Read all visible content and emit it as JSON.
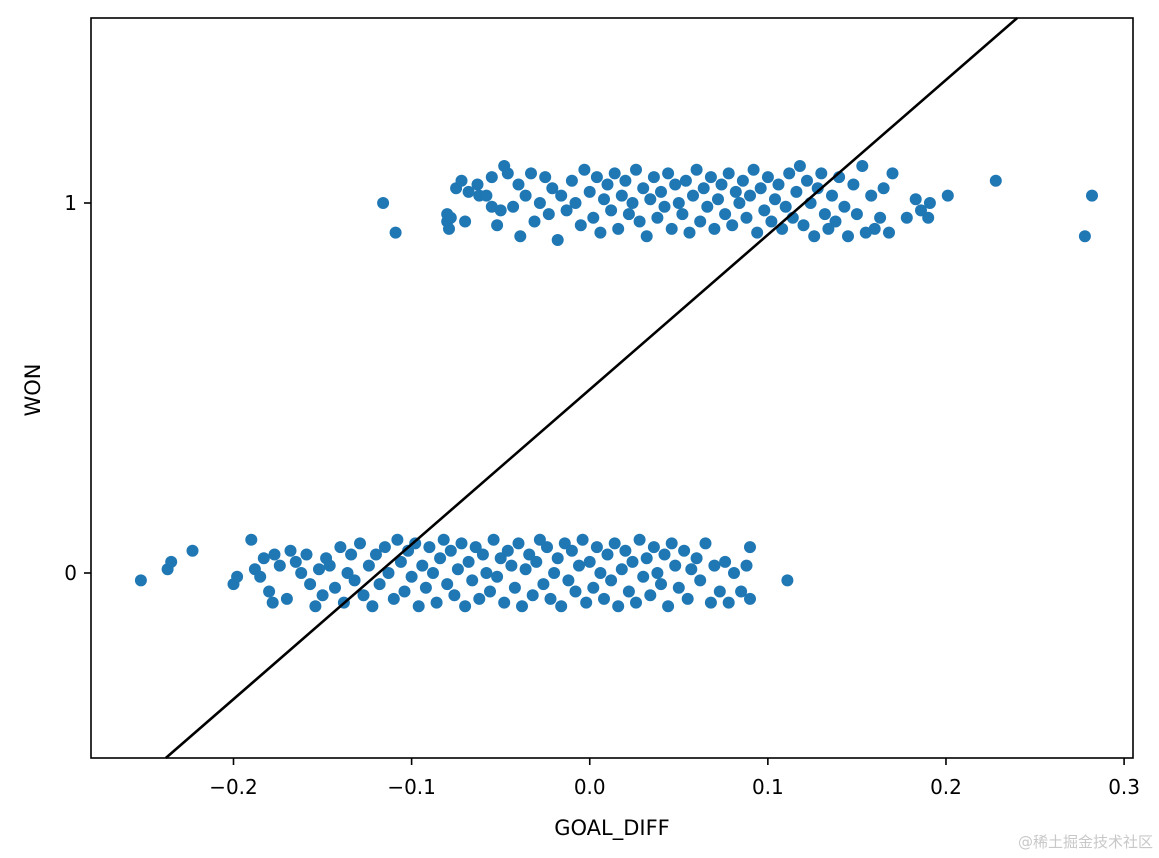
{
  "chart_data": {
    "type": "scatter",
    "xlabel": "GOAL_DIFF",
    "ylabel": "WON",
    "xlim": [
      -0.28,
      0.305
    ],
    "ylim": [
      -0.5,
      1.5
    ],
    "x_ticks": [
      -0.2,
      -0.1,
      0.0,
      0.1,
      0.2,
      0.3
    ],
    "x_tick_labels": [
      "−0.2",
      "−0.1",
      "0.0",
      "0.1",
      "0.2",
      "0.3"
    ],
    "y_ticks": [
      0,
      1
    ],
    "y_tick_labels": [
      "0",
      "1"
    ],
    "grid": false,
    "marker_color": "#1f77b4",
    "line_color": "#000000",
    "fit_line": {
      "x": [
        -0.238,
        0.24
      ],
      "y": [
        -0.5,
        1.5
      ]
    },
    "series": [
      {
        "points": [
          [
            -0.116,
            1.0
          ],
          [
            -0.109,
            0.92
          ],
          [
            -0.08,
            0.95
          ],
          [
            -0.08,
            0.97
          ],
          [
            -0.079,
            0.93
          ],
          [
            -0.078,
            0.96
          ],
          [
            -0.075,
            1.04
          ],
          [
            -0.07,
            0.95
          ],
          [
            -0.072,
            1.06
          ],
          [
            -0.068,
            1.03
          ],
          [
            -0.063,
            1.05
          ],
          [
            -0.062,
            1.02
          ],
          [
            -0.058,
            1.02
          ],
          [
            -0.055,
            1.07
          ],
          [
            -0.055,
            0.99
          ],
          [
            -0.052,
            0.94
          ],
          [
            -0.05,
            0.98
          ],
          [
            -0.048,
            1.1
          ],
          [
            -0.046,
            1.08
          ],
          [
            -0.043,
            0.99
          ],
          [
            -0.04,
            1.05
          ],
          [
            -0.039,
            0.91
          ],
          [
            -0.036,
            1.02
          ],
          [
            -0.033,
            1.08
          ],
          [
            -0.031,
            0.95
          ],
          [
            -0.028,
            1.0
          ],
          [
            -0.025,
            1.07
          ],
          [
            -0.023,
            0.97
          ],
          [
            -0.021,
            1.04
          ],
          [
            -0.018,
            0.9
          ],
          [
            -0.016,
            1.02
          ],
          [
            -0.013,
            0.98
          ],
          [
            -0.01,
            1.06
          ],
          [
            -0.008,
            1.0
          ],
          [
            -0.005,
            0.94
          ],
          [
            -0.003,
            1.09
          ],
          [
            0.0,
            1.03
          ],
          [
            0.002,
            0.96
          ],
          [
            0.004,
            1.07
          ],
          [
            0.006,
            0.92
          ],
          [
            0.008,
            1.01
          ],
          [
            0.01,
            1.05
          ],
          [
            0.012,
            0.98
          ],
          [
            0.014,
            1.08
          ],
          [
            0.016,
            0.93
          ],
          [
            0.018,
            1.02
          ],
          [
            0.02,
            1.06
          ],
          [
            0.022,
            0.97
          ],
          [
            0.024,
            1.0
          ],
          [
            0.026,
            1.09
          ],
          [
            0.028,
            0.95
          ],
          [
            0.03,
            1.04
          ],
          [
            0.032,
            0.91
          ],
          [
            0.034,
            1.01
          ],
          [
            0.036,
            1.07
          ],
          [
            0.038,
            0.96
          ],
          [
            0.04,
            1.03
          ],
          [
            0.042,
            0.99
          ],
          [
            0.044,
            1.08
          ],
          [
            0.046,
            0.93
          ],
          [
            0.048,
            1.05
          ],
          [
            0.05,
            1.0
          ],
          [
            0.052,
            0.97
          ],
          [
            0.054,
            1.06
          ],
          [
            0.056,
            0.92
          ],
          [
            0.058,
            1.02
          ],
          [
            0.06,
            1.09
          ],
          [
            0.062,
            0.95
          ],
          [
            0.064,
            1.04
          ],
          [
            0.066,
            0.99
          ],
          [
            0.068,
            1.07
          ],
          [
            0.07,
            0.93
          ],
          [
            0.072,
            1.01
          ],
          [
            0.074,
            1.05
          ],
          [
            0.076,
            0.97
          ],
          [
            0.078,
            1.08
          ],
          [
            0.08,
            0.94
          ],
          [
            0.082,
            1.03
          ],
          [
            0.084,
            1.0
          ],
          [
            0.086,
            1.06
          ],
          [
            0.088,
            0.96
          ],
          [
            0.09,
            1.02
          ],
          [
            0.092,
            1.09
          ],
          [
            0.094,
            0.92
          ],
          [
            0.096,
            1.04
          ],
          [
            0.098,
            0.98
          ],
          [
            0.1,
            1.07
          ],
          [
            0.102,
            0.95
          ],
          [
            0.104,
            1.01
          ],
          [
            0.106,
            1.05
          ],
          [
            0.108,
            0.93
          ],
          [
            0.11,
            0.99
          ],
          [
            0.112,
            1.08
          ],
          [
            0.114,
            0.96
          ],
          [
            0.116,
            1.03
          ],
          [
            0.118,
            1.1
          ],
          [
            0.12,
            0.94
          ],
          [
            0.122,
            1.06
          ],
          [
            0.124,
            1.0
          ],
          [
            0.126,
            0.91
          ],
          [
            0.128,
            1.04
          ],
          [
            0.13,
            1.08
          ],
          [
            0.132,
            0.97
          ],
          [
            0.134,
            0.93
          ],
          [
            0.136,
            1.02
          ],
          [
            0.138,
            0.95
          ],
          [
            0.14,
            1.07
          ],
          [
            0.143,
            0.99
          ],
          [
            0.145,
            0.91
          ],
          [
            0.148,
            1.05
          ],
          [
            0.15,
            0.97
          ],
          [
            0.153,
            1.1
          ],
          [
            0.155,
            0.92
          ],
          [
            0.158,
            1.02
          ],
          [
            0.16,
            0.93
          ],
          [
            0.163,
            0.96
          ],
          [
            0.165,
            1.04
          ],
          [
            0.168,
            0.92
          ],
          [
            0.17,
            1.08
          ],
          [
            0.178,
            0.96
          ],
          [
            0.183,
            1.01
          ],
          [
            0.186,
            0.98
          ],
          [
            0.19,
            0.96
          ],
          [
            0.191,
            1.0
          ],
          [
            0.201,
            1.02
          ],
          [
            0.228,
            1.06
          ],
          [
            0.278,
            0.91
          ],
          [
            0.282,
            1.02
          ]
        ]
      },
      {
        "points": [
          [
            -0.252,
            -0.02
          ],
          [
            -0.237,
            0.01
          ],
          [
            -0.235,
            0.03
          ],
          [
            -0.223,
            0.06
          ],
          [
            -0.2,
            -0.03
          ],
          [
            -0.198,
            -0.01
          ],
          [
            -0.19,
            0.09
          ],
          [
            -0.188,
            0.01
          ],
          [
            -0.185,
            -0.01
          ],
          [
            -0.183,
            0.04
          ],
          [
            -0.18,
            -0.05
          ],
          [
            -0.178,
            -0.08
          ],
          [
            -0.177,
            0.05
          ],
          [
            -0.174,
            0.02
          ],
          [
            -0.17,
            -0.07
          ],
          [
            -0.168,
            0.06
          ],
          [
            -0.165,
            0.03
          ],
          [
            -0.162,
            0.0
          ],
          [
            -0.159,
            0.05
          ],
          [
            -0.157,
            -0.03
          ],
          [
            -0.154,
            -0.09
          ],
          [
            -0.152,
            0.01
          ],
          [
            -0.15,
            -0.06
          ],
          [
            -0.148,
            0.04
          ],
          [
            -0.146,
            0.02
          ],
          [
            -0.143,
            -0.04
          ],
          [
            -0.14,
            0.07
          ],
          [
            -0.138,
            -0.08
          ],
          [
            -0.136,
            0.0
          ],
          [
            -0.134,
            0.05
          ],
          [
            -0.132,
            -0.02
          ],
          [
            -0.129,
            0.08
          ],
          [
            -0.127,
            -0.06
          ],
          [
            -0.124,
            0.02
          ],
          [
            -0.122,
            -0.09
          ],
          [
            -0.12,
            0.05
          ],
          [
            -0.118,
            -0.03
          ],
          [
            -0.115,
            0.07
          ],
          [
            -0.113,
            0.0
          ],
          [
            -0.11,
            -0.07
          ],
          [
            -0.108,
            0.09
          ],
          [
            -0.106,
            0.03
          ],
          [
            -0.104,
            -0.05
          ],
          [
            -0.102,
            0.06
          ],
          [
            -0.1,
            -0.01
          ],
          [
            -0.098,
            0.08
          ],
          [
            -0.096,
            -0.09
          ],
          [
            -0.094,
            0.02
          ],
          [
            -0.092,
            -0.04
          ],
          [
            -0.09,
            0.07
          ],
          [
            -0.088,
            0.0
          ],
          [
            -0.086,
            -0.08
          ],
          [
            -0.084,
            0.04
          ],
          [
            -0.082,
            0.09
          ],
          [
            -0.08,
            -0.03
          ],
          [
            -0.078,
            0.06
          ],
          [
            -0.076,
            -0.06
          ],
          [
            -0.074,
            0.01
          ],
          [
            -0.072,
            0.08
          ],
          [
            -0.07,
            -0.09
          ],
          [
            -0.068,
            0.03
          ],
          [
            -0.066,
            -0.02
          ],
          [
            -0.064,
            0.07
          ],
          [
            -0.062,
            -0.07
          ],
          [
            -0.06,
            0.05
          ],
          [
            -0.058,
            0.0
          ],
          [
            -0.056,
            -0.05
          ],
          [
            -0.054,
            0.09
          ],
          [
            -0.052,
            -0.01
          ],
          [
            -0.05,
            0.04
          ],
          [
            -0.048,
            -0.08
          ],
          [
            -0.046,
            0.06
          ],
          [
            -0.044,
            0.02
          ],
          [
            -0.042,
            -0.04
          ],
          [
            -0.04,
            0.08
          ],
          [
            -0.038,
            -0.09
          ],
          [
            -0.036,
            0.01
          ],
          [
            -0.034,
            0.05
          ],
          [
            -0.032,
            -0.06
          ],
          [
            -0.03,
            0.03
          ],
          [
            -0.028,
            0.09
          ],
          [
            -0.026,
            -0.03
          ],
          [
            -0.024,
            0.07
          ],
          [
            -0.022,
            -0.07
          ],
          [
            -0.02,
            0.0
          ],
          [
            -0.018,
            0.04
          ],
          [
            -0.016,
            -0.09
          ],
          [
            -0.014,
            0.08
          ],
          [
            -0.012,
            -0.02
          ],
          [
            -0.01,
            0.06
          ],
          [
            -0.008,
            -0.05
          ],
          [
            -0.006,
            0.02
          ],
          [
            -0.004,
            0.09
          ],
          [
            -0.002,
            -0.08
          ],
          [
            0.0,
            0.03
          ],
          [
            0.002,
            -0.04
          ],
          [
            0.004,
            0.07
          ],
          [
            0.006,
            0.0
          ],
          [
            0.008,
            -0.07
          ],
          [
            0.01,
            0.05
          ],
          [
            0.012,
            -0.02
          ],
          [
            0.014,
            0.08
          ],
          [
            0.016,
            -0.09
          ],
          [
            0.018,
            0.01
          ],
          [
            0.02,
            0.06
          ],
          [
            0.022,
            -0.05
          ],
          [
            0.024,
            0.03
          ],
          [
            0.026,
            -0.08
          ],
          [
            0.028,
            0.09
          ],
          [
            0.03,
            -0.01
          ],
          [
            0.032,
            0.04
          ],
          [
            0.034,
            -0.06
          ],
          [
            0.036,
            0.07
          ],
          [
            0.038,
            0.0
          ],
          [
            0.04,
            -0.03
          ],
          [
            0.042,
            0.05
          ],
          [
            0.044,
            -0.09
          ],
          [
            0.046,
            0.08
          ],
          [
            0.048,
            0.02
          ],
          [
            0.05,
            -0.04
          ],
          [
            0.053,
            0.06
          ],
          [
            0.055,
            -0.07
          ],
          [
            0.057,
            0.01
          ],
          [
            0.06,
            0.04
          ],
          [
            0.062,
            -0.02
          ],
          [
            0.065,
            0.08
          ],
          [
            0.068,
            -0.08
          ],
          [
            0.07,
            0.02
          ],
          [
            0.073,
            -0.05
          ],
          [
            0.076,
            0.03
          ],
          [
            0.078,
            -0.08
          ],
          [
            0.081,
            0.0
          ],
          [
            0.085,
            -0.05
          ],
          [
            0.088,
            0.02
          ],
          [
            0.09,
            -0.07
          ],
          [
            0.09,
            0.07
          ],
          [
            0.111,
            -0.02
          ]
        ]
      }
    ]
  },
  "watermark": "@稀土掘金技术社区"
}
